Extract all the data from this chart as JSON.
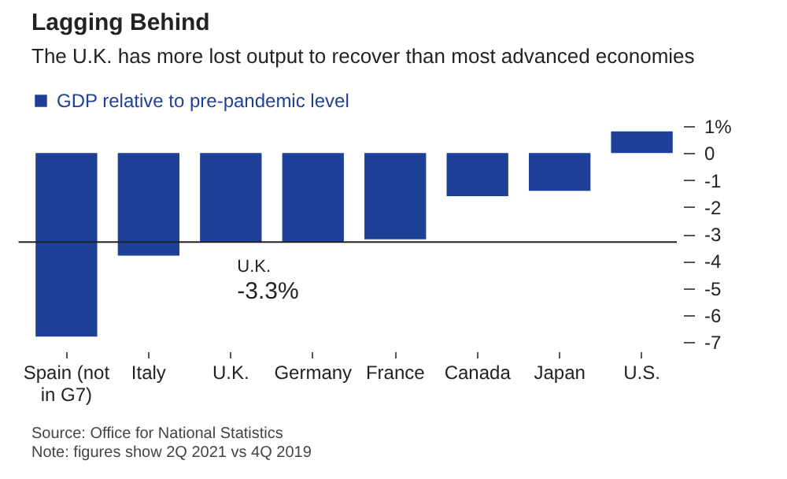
{
  "chart_data": {
    "type": "bar",
    "title": "Lagging Behind",
    "subtitle": "The U.K. has more lost output to recover than most advanced economies",
    "categories": [
      "Spain (not in G7)",
      "Italy",
      "U.K.",
      "Germany",
      "France",
      "Canada",
      "Japan",
      "U.S."
    ],
    "series": [
      {
        "name": "GDP relative to pre-pandemic level",
        "color": "#1f4099",
        "values": [
          -6.8,
          -3.8,
          -3.3,
          -3.3,
          -3.2,
          -1.6,
          -1.4,
          0.8
        ]
      }
    ],
    "ylim": [
      -7,
      1
    ],
    "yticks": [
      {
        "value": 1,
        "label": "1%"
      },
      0,
      -1,
      -2,
      -3,
      -4,
      -5,
      -6,
      -7
    ],
    "grid": false,
    "legend": "top left",
    "ref_lines": [
      {
        "axis": "y",
        "value": -3.3,
        "color": "#222222"
      }
    ],
    "annotations": [
      {
        "text": "U.K.",
        "x": "U.K.",
        "y": -3.3
      },
      {
        "text": "-3.3%",
        "x": "U.K.",
        "y": -3.3
      },
      "Source: Office for National Statistics",
      "Note: figures show 2Q 2021 vs 4Q 2019"
    ]
  }
}
